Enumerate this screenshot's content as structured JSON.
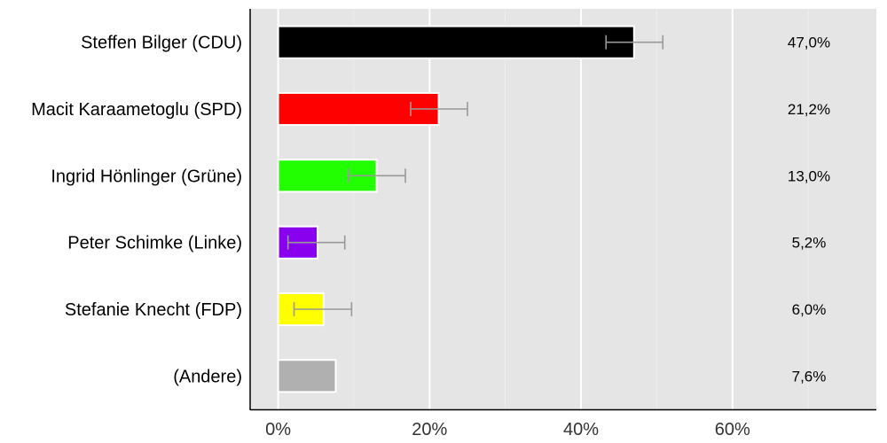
{
  "chart_data": {
    "type": "bar",
    "orientation": "horizontal",
    "title": "",
    "xlabel": "",
    "ylabel": "",
    "xlim": [
      -3.7,
      79
    ],
    "x_ticks": [
      0,
      20,
      40,
      60
    ],
    "x_tick_labels": [
      "0%",
      "20%",
      "40%",
      "60%"
    ],
    "grid": true,
    "categories": [
      "Steffen Bilger (CDU)",
      "Macit Karaametoglu (SPD)",
      "Ingrid Hönlinger (Grüne)",
      "Peter Schimke (Linke)",
      "Stefanie Knecht (FDP)",
      "(Andere)"
    ],
    "values": [
      47.0,
      21.2,
      13.0,
      5.2,
      6.0,
      7.6
    ],
    "value_labels": [
      "47,0%",
      "21,2%",
      "13,0%",
      "5,2%",
      "6,0%",
      "7,6%"
    ],
    "colors": [
      "#000000",
      "#ff0000",
      "#22ff00",
      "#8800ee",
      "#ffff00",
      "#b0b0b0"
    ],
    "error_bars": [
      [
        43.3,
        50.8
      ],
      [
        17.5,
        25.0
      ],
      [
        9.3,
        16.8
      ],
      [
        1.3,
        8.8
      ],
      [
        2.1,
        9.7
      ],
      null
    ]
  }
}
